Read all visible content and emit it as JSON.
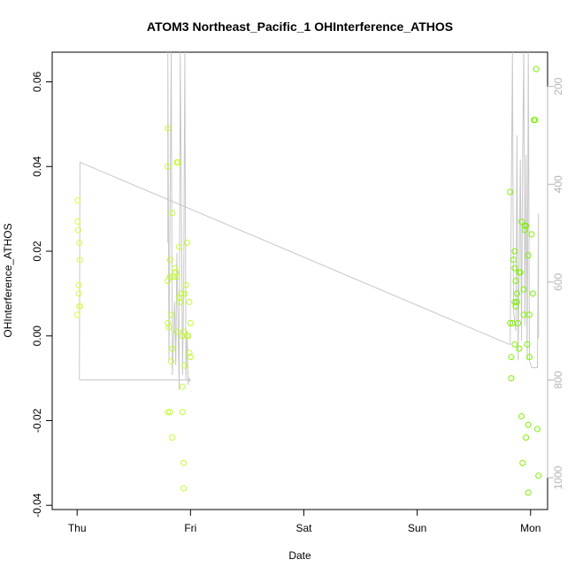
{
  "chart_data": {
    "type": "scatter",
    "title": "ATOM3 Northeast_Pacific_1 OHInterference_ATHOS",
    "xlabel": "Date",
    "ylabel": "OHInterference_ATHOS",
    "x_ticks": [
      {
        "label": "Thu",
        "day": 0
      },
      {
        "label": "Fri",
        "day": 1
      },
      {
        "label": "Sat",
        "day": 2
      },
      {
        "label": "Sun",
        "day": 3
      },
      {
        "label": "Mon",
        "day": 4
      }
    ],
    "xlim": [
      -0.22,
      4.15
    ],
    "ylim": [
      -0.041,
      0.067
    ],
    "y_ticks": [
      -0.04,
      -0.02,
      0.0,
      0.02,
      0.04,
      0.06
    ],
    "y_tick_labels": [
      "-0.04",
      "-0.02",
      "0.00",
      "0.02",
      "0.04",
      "0.06"
    ],
    "right_axis": {
      "ticks": [
        200,
        400,
        600,
        800,
        1000
      ],
      "tick_labels": [
        "200",
        "400",
        "600",
        "800",
        "1000"
      ],
      "ylim": [
        1065,
        130
      ],
      "color": "#b5b5b5"
    },
    "grid": false,
    "series": [
      {
        "color_start": "#d6ff3a",
        "color_end": "#7cf000",
        "points": [
          [
            0.0,
            0.005
          ],
          [
            0.005,
            0.027
          ],
          [
            0.005,
            0.032
          ],
          [
            0.01,
            0.025
          ],
          [
            0.015,
            0.012
          ],
          [
            0.015,
            0.01
          ],
          [
            0.02,
            0.007
          ],
          [
            0.025,
            0.007
          ],
          [
            0.02,
            0.022
          ],
          [
            0.025,
            0.018
          ],
          [
            0.8,
            0.049
          ],
          [
            0.8,
            0.04
          ],
          [
            0.8,
            0.003
          ],
          [
            0.8,
            0.013
          ],
          [
            0.81,
            0.002
          ],
          [
            0.82,
            0.018
          ],
          [
            0.82,
            0.014
          ],
          [
            0.83,
            -0.006
          ],
          [
            0.83,
            0.005
          ],
          [
            0.84,
            -0.003
          ],
          [
            0.85,
            0.014
          ],
          [
            0.86,
            0.016
          ],
          [
            0.87,
            0.015
          ],
          [
            0.88,
            0.014
          ],
          [
            0.9,
            0.021
          ],
          [
            0.9,
            0.009
          ],
          [
            0.91,
            0.008
          ],
          [
            0.92,
            0.01
          ],
          [
            0.88,
            0.001
          ],
          [
            0.93,
            0.0
          ],
          [
            0.94,
            0.001
          ],
          [
            0.95,
            -0.007
          ],
          [
            0.95,
            0.01
          ],
          [
            0.96,
            0.012
          ],
          [
            0.97,
            0.022
          ],
          [
            0.97,
            0.0
          ],
          [
            0.98,
            0.0
          ],
          [
            0.99,
            0.008
          ],
          [
            0.99,
            -0.004
          ],
          [
            1.0,
            -0.005
          ],
          [
            1.0,
            0.003
          ],
          [
            0.8,
            -0.018
          ],
          [
            0.82,
            -0.018
          ],
          [
            0.84,
            -0.024
          ],
          [
            0.84,
            0.029
          ],
          [
            0.88,
            0.041
          ],
          [
            0.89,
            0.041
          ],
          [
            0.93,
            -0.018
          ],
          [
            0.94,
            -0.03
          ],
          [
            0.94,
            -0.036
          ],
          [
            0.93,
            -0.012
          ],
          [
            3.82,
            0.034
          ],
          [
            3.83,
            -0.01
          ],
          [
            3.82,
            0.003
          ],
          [
            3.83,
            -0.005
          ],
          [
            3.84,
            0.003
          ],
          [
            3.85,
            0.018
          ],
          [
            3.86,
            0.016
          ],
          [
            3.86,
            0.02
          ],
          [
            3.86,
            0.008
          ],
          [
            3.87,
            0.013
          ],
          [
            3.87,
            0.007
          ],
          [
            3.88,
            0.008
          ],
          [
            3.88,
            0.01
          ],
          [
            3.89,
            0.003
          ],
          [
            3.9,
            0.015
          ],
          [
            3.9,
            -0.003
          ],
          [
            3.91,
            0.015
          ],
          [
            3.92,
            -0.019
          ],
          [
            3.92,
            0.027
          ],
          [
            3.93,
            -0.03
          ],
          [
            3.94,
            0.011
          ],
          [
            3.94,
            0.005
          ],
          [
            3.95,
            0.026
          ],
          [
            3.95,
            0.025
          ],
          [
            3.96,
            -0.024
          ],
          [
            3.96,
            0.026
          ],
          [
            3.97,
            -0.002
          ],
          [
            3.98,
            -0.021
          ],
          [
            3.98,
            0.019
          ],
          [
            3.99,
            0.005
          ],
          [
            3.99,
            -0.005
          ],
          [
            3.98,
            -0.037
          ],
          [
            4.01,
            0.024
          ],
          [
            4.02,
            0.01
          ],
          [
            4.03,
            0.051
          ],
          [
            4.04,
            0.051
          ],
          [
            4.05,
            0.063
          ],
          [
            4.06,
            -0.022
          ],
          [
            4.07,
            -0.033
          ],
          [
            3.86,
            -0.002
          ]
        ]
      }
    ],
    "line_series": {
      "color": "#c8c8c8",
      "axis": "right",
      "points": [
        [
          0.0,
          800
        ],
        [
          0.01,
          355
        ],
        [
          0.02,
          362
        ],
        [
          0.8,
          362
        ],
        [
          0.85,
          380
        ],
        [
          1.0,
          395
        ],
        [
          3.75,
          710
        ],
        [
          3.82,
          730
        ],
        [
          3.88,
          720
        ],
        [
          4.05,
          715
        ],
        [
          0.0,
          800
        ],
        [
          1.0,
          800
        ]
      ]
    }
  }
}
